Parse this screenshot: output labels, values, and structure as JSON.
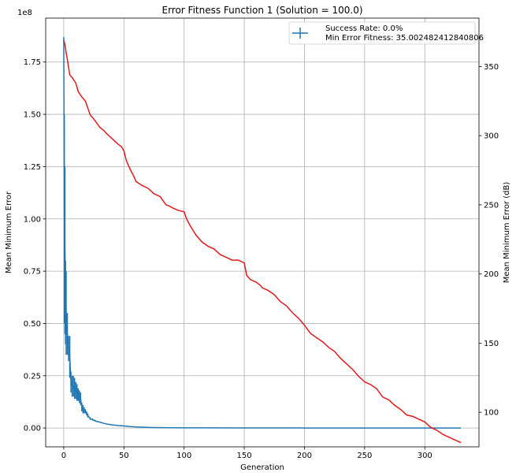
{
  "chart_data": {
    "type": "line",
    "title": "Error Fitness Function 1 (Solution = 100.0)",
    "xlabel": "Generation",
    "ylabel_left": "Mean Minimum Error",
    "ylabel_right": "Mean Minimum Error (dB)",
    "left_exponent_label": "1e8",
    "xlim": [
      -15,
      345
    ],
    "ylim_left": [
      -0.09,
      1.96
    ],
    "ylim_right": [
      75,
      385
    ],
    "x_ticks": [
      "0",
      "50",
      "100",
      "150",
      "200",
      "250",
      "300"
    ],
    "y_left_ticks": [
      "0.00",
      "0.25",
      "0.50",
      "0.75",
      "1.00",
      "1.25",
      "1.50",
      "1.75"
    ],
    "y_right_ticks": [
      "100",
      "150",
      "200",
      "250",
      "300",
      "350"
    ],
    "grid": true,
    "legend_position": "top-right",
    "legend": [
      "Success Rate: 0.0%",
      "Min Error Fitness: 35.002482412840806"
    ],
    "series": [
      {
        "axis": "left",
        "color": "#1f77b4",
        "style": "errorbar",
        "x": [
          0,
          0.5,
          1,
          1.5,
          2,
          3,
          4,
          5,
          6,
          7,
          8,
          9,
          10,
          11,
          12,
          13,
          14,
          15,
          16,
          17,
          18,
          19,
          20,
          22,
          24,
          26,
          28,
          30,
          35,
          40,
          45,
          50,
          55,
          60,
          70,
          80,
          100,
          150,
          200,
          250,
          300,
          330
        ],
        "y": [
          1.87,
          1.0,
          0.85,
          0.6,
          0.55,
          0.45,
          0.38,
          0.34,
          0.22,
          0.2,
          0.2,
          0.19,
          0.18,
          0.17,
          0.16,
          0.15,
          0.14,
          0.1,
          0.09,
          0.085,
          0.08,
          0.07,
          0.06,
          0.045,
          0.04,
          0.035,
          0.03,
          0.028,
          0.02,
          0.015,
          0.012,
          0.01,
          0.007,
          0.005,
          0.003,
          0.002,
          0.001,
          0.0005,
          0.0002,
          0.0001,
          0.0001,
          0.0001
        ],
        "err": [
          0.0,
          0.5,
          0.4,
          0.2,
          0.2,
          0.1,
          0.06,
          0.1,
          0.05,
          0.05,
          0.05,
          0.05,
          0.04,
          0.04,
          0.03,
          0.03,
          0.03,
          0.02,
          0.02,
          0.015,
          0.01,
          0.01,
          0.01,
          0.006,
          0.005,
          0.004,
          0.003,
          0.003,
          0.002,
          0.002,
          0.001,
          0.001,
          0.001,
          0,
          0,
          0,
          0,
          0,
          0,
          0,
          0,
          0
        ]
      },
      {
        "axis": "right",
        "color": "#e31a1c",
        "style": "line",
        "x": [
          0,
          1,
          2,
          3,
          5,
          7,
          10,
          12,
          15,
          18,
          22,
          25,
          30,
          33,
          35,
          40,
          45,
          48,
          50,
          52,
          55,
          58,
          60,
          65,
          70,
          75,
          80,
          85,
          88,
          90,
          95,
          100,
          102,
          105,
          110,
          115,
          120,
          125,
          130,
          135,
          140,
          145,
          150,
          152,
          155,
          160,
          163,
          165,
          170,
          175,
          180,
          185,
          190,
          195,
          200,
          205,
          210,
          215,
          220,
          225,
          230,
          235,
          240,
          245,
          250,
          255,
          260,
          265,
          270,
          275,
          280,
          285,
          290,
          295,
          300,
          305,
          310,
          315,
          320,
          325,
          330
        ],
        "y": [
          369,
          366,
          360,
          355,
          344,
          342,
          338,
          332,
          328,
          325,
          315,
          312,
          306,
          304,
          302,
          298,
          294,
          292,
          289,
          282,
          276,
          271,
          267,
          264,
          262,
          258,
          256,
          250,
          249,
          248,
          246,
          245,
          240,
          235,
          228,
          223,
          220,
          218,
          214,
          212,
          210,
          210,
          208,
          199,
          196,
          194,
          192,
          190,
          188,
          185,
          180,
          177,
          172,
          168,
          163,
          157,
          154,
          151,
          147,
          144,
          139,
          135,
          131,
          126,
          122,
          120,
          117,
          111,
          109,
          105,
          102,
          98,
          97,
          95,
          93,
          89,
          87,
          84,
          82,
          80,
          78
        ]
      }
    ]
  }
}
